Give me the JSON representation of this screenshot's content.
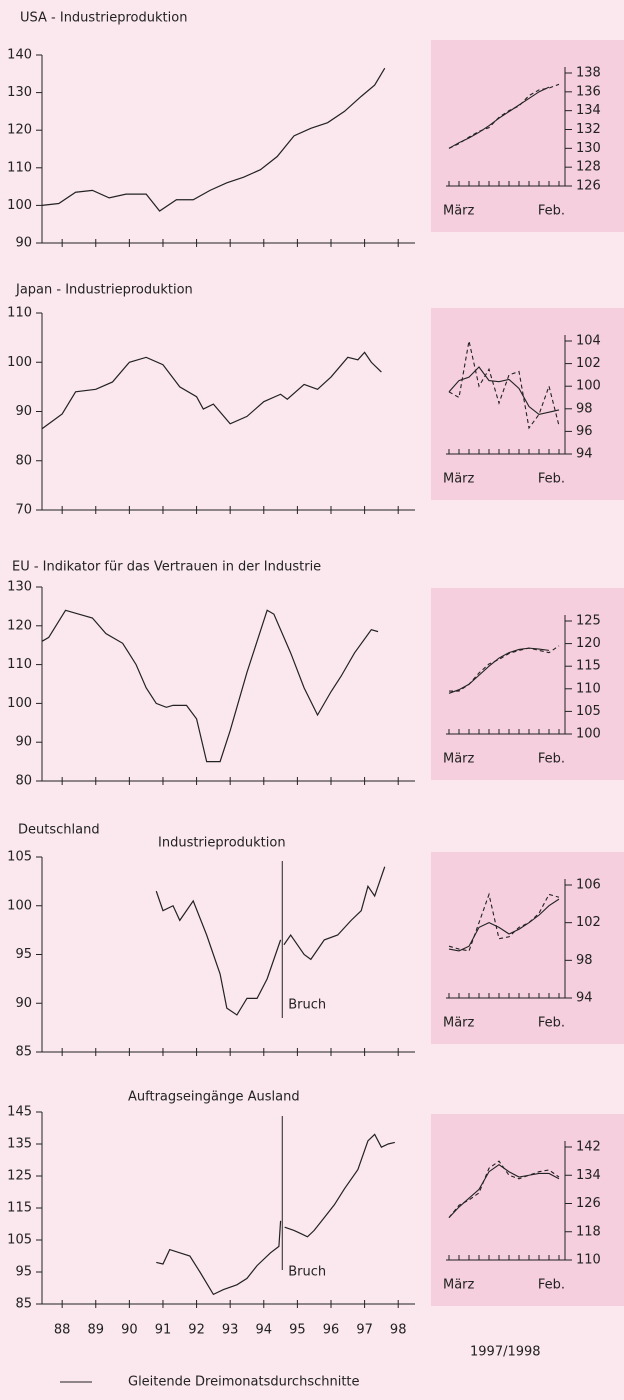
{
  "section_title": "Deutschland",
  "period_label": "1997/1998",
  "legend": [
    {
      "label": "Gleitende Dreimonatsdurchschnitte",
      "dash": false
    }
  ],
  "chart_data": [
    {
      "type": "line",
      "title": "USA - Industrieproduktion",
      "xlim": [
        87.4,
        98.5
      ],
      "xticks": [
        88,
        89,
        90,
        91,
        92,
        93,
        94,
        95,
        96,
        97,
        98
      ],
      "xtick_labels": false,
      "ylim": [
        90,
        140
      ],
      "yticks": [
        90,
        100,
        110,
        120,
        130,
        140
      ],
      "color": "#222",
      "x": [
        87.4,
        87.9,
        88.4,
        88.9,
        89.4,
        89.9,
        90.5,
        90.9,
        91.4,
        91.9,
        92.4,
        92.9,
        93.4,
        93.9,
        94.4,
        94.9,
        95.4,
        95.9,
        96.4,
        96.9,
        97.3,
        97.6
      ],
      "values": [
        100,
        100.5,
        103.5,
        104,
        102,
        103,
        103,
        98.5,
        101.5,
        101.5,
        104,
        106,
        107.5,
        109.5,
        113,
        118.5,
        120.5,
        122,
        125,
        129,
        132,
        136.5
      ]
    },
    {
      "type": "inset",
      "categories": [
        "März",
        null,
        null,
        null,
        null,
        null,
        null,
        null,
        null,
        null,
        null,
        "Feb."
      ],
      "ylim": [
        126,
        138
      ],
      "yticks": [
        126,
        128,
        130,
        132,
        134,
        136,
        138
      ],
      "series": [
        {
          "color": "#222",
          "dash": false,
          "values": [
            130,
            130.6,
            131.1,
            131.7,
            132.4,
            133.2,
            133.9,
            134.6,
            135.3,
            136,
            136.5,
            null
          ]
        },
        {
          "color": "#222",
          "dash": true,
          "values": [
            130,
            130.5,
            131.2,
            131.8,
            132.2,
            133.3,
            134,
            134.5,
            135.6,
            136.2,
            136.4,
            136.8
          ]
        }
      ]
    },
    {
      "type": "line",
      "title": "Japan - Industrieproduktion",
      "xlim": [
        87.4,
        98.5
      ],
      "xticks": [
        88,
        89,
        90,
        91,
        92,
        93,
        94,
        95,
        96,
        97,
        98
      ],
      "xtick_labels": false,
      "ylim": [
        70,
        110
      ],
      "yticks": [
        70,
        80,
        90,
        100,
        110
      ],
      "color": "#222",
      "x": [
        87.4,
        87.7,
        88.0,
        88.4,
        89.0,
        89.5,
        90.0,
        90.5,
        91.0,
        91.5,
        92.0,
        92.2,
        92.5,
        93.0,
        93.5,
        94.0,
        94.5,
        94.7,
        95.2,
        95.6,
        96.0,
        96.5,
        96.8,
        97.0,
        97.2,
        97.5
      ],
      "values": [
        86.5,
        88,
        89.5,
        94,
        94.5,
        96,
        100,
        101,
        99.5,
        95,
        93,
        90.5,
        91.5,
        87.5,
        89,
        92,
        93.5,
        92.5,
        95.5,
        94.5,
        97,
        101,
        100.5,
        102,
        100,
        98
      ]
    },
    {
      "type": "inset",
      "categories": [
        "März",
        null,
        null,
        null,
        null,
        null,
        null,
        null,
        null,
        null,
        null,
        "Feb."
      ],
      "ylim": [
        94,
        104
      ],
      "yticks": [
        94,
        96,
        98,
        100,
        102,
        104
      ],
      "series": [
        {
          "color": "#222",
          "dash": false,
          "values": [
            99.5,
            100.5,
            100.8,
            101.7,
            100.5,
            100.4,
            100.6,
            99.8,
            98.2,
            97.5,
            97.7,
            97.9
          ]
        },
        {
          "color": "#222",
          "dash": true,
          "values": [
            99.5,
            99,
            104,
            100,
            101.5,
            98.5,
            101,
            101.3,
            96.3,
            97.5,
            100,
            96.5
          ]
        }
      ]
    },
    {
      "type": "line",
      "title": "EU - Indikator für das Vertrauen in der Industrie",
      "xlim": [
        87.4,
        98.5
      ],
      "xticks": [
        88,
        89,
        90,
        91,
        92,
        93,
        94,
        95,
        96,
        97,
        98
      ],
      "xtick_labels": false,
      "ylim": [
        80,
        130
      ],
      "yticks": [
        80,
        90,
        100,
        110,
        120,
        130
      ],
      "color": "#222",
      "x": [
        87.4,
        87.6,
        88.1,
        88.5,
        88.9,
        89.3,
        89.8,
        90.2,
        90.5,
        90.8,
        91.1,
        91.3,
        91.7,
        92.0,
        92.3,
        92.7,
        93.0,
        93.5,
        94.1,
        94.3,
        94.8,
        95.2,
        95.6,
        96.0,
        96.3,
        96.7,
        97.2,
        97.4
      ],
      "values": [
        116,
        117,
        124,
        123,
        122,
        118,
        115.5,
        110,
        104,
        100,
        99,
        99.5,
        99.5,
        96,
        85,
        85,
        93,
        108,
        124,
        123,
        113,
        104,
        97,
        103,
        107,
        113,
        119,
        118.5
      ]
    },
    {
      "type": "inset",
      "categories": [
        "März",
        null,
        null,
        null,
        null,
        null,
        null,
        null,
        null,
        null,
        null,
        "Feb."
      ],
      "ylim": [
        100,
        125
      ],
      "yticks": [
        100,
        105,
        110,
        115,
        120,
        125
      ],
      "series": [
        {
          "color": "#222",
          "dash": false,
          "values": [
            109,
            109.8,
            111,
            113,
            115,
            116.8,
            118,
            118.7,
            119,
            118.8,
            118.5,
            null
          ]
        },
        {
          "color": "#222",
          "dash": true,
          "values": [
            109.5,
            109.5,
            111,
            113.5,
            115.5,
            116.5,
            117.8,
            118.5,
            119,
            118.5,
            118,
            119.5
          ]
        }
      ]
    },
    {
      "type": "line",
      "title": "Industrieproduktion",
      "xlim": [
        87.4,
        98.5
      ],
      "xticks": [
        88,
        89,
        90,
        91,
        92,
        93,
        94,
        95,
        96,
        97,
        98
      ],
      "xtick_labels": false,
      "ylim": [
        85,
        105
      ],
      "yticks": [
        85,
        90,
        95,
        100,
        105
      ],
      "color": "#222",
      "break_x": 94.55,
      "annotation": "Bruch",
      "x": [
        90.8,
        91.0,
        91.3,
        91.5,
        91.9,
        92.3,
        92.7,
        92.9,
        93.2,
        93.5,
        93.8,
        94.1,
        94.5,
        94.55,
        94.6,
        94.8,
        95.2,
        95.4,
        95.8,
        96.2,
        96.6,
        96.9,
        97.1,
        97.3,
        97.6
      ],
      "values": [
        101.5,
        99.5,
        100,
        98.5,
        100.5,
        97,
        93,
        89.5,
        88.8,
        90.5,
        90.5,
        92.5,
        96.5,
        null,
        96,
        97,
        95,
        94.5,
        96.5,
        97,
        98.5,
        99.5,
        102,
        101,
        104
      ]
    },
    {
      "type": "inset",
      "categories": [
        "März",
        null,
        null,
        null,
        null,
        null,
        null,
        null,
        null,
        null,
        null,
        "Feb."
      ],
      "ylim": [
        94,
        106
      ],
      "yticks": [
        94,
        98,
        102,
        106
      ],
      "series": [
        {
          "color": "#222",
          "dash": false,
          "values": [
            99.2,
            99,
            99.5,
            101.5,
            102,
            101.5,
            100.8,
            101.3,
            102,
            102.8,
            103.8,
            104.5
          ]
        },
        {
          "color": "#222",
          "dash": true,
          "values": [
            99.5,
            99.2,
            99,
            102,
            105,
            100.3,
            100.5,
            101.5,
            102,
            103,
            105,
            104.7
          ]
        }
      ]
    },
    {
      "type": "line",
      "title": "Auftragseingänge Ausland",
      "xlim": [
        87.4,
        98.5
      ],
      "xticks": [
        88,
        89,
        90,
        91,
        92,
        93,
        94,
        95,
        96,
        97,
        98
      ],
      "xtick_labels": true,
      "ylim": [
        85,
        145
      ],
      "yticks": [
        85,
        95,
        105,
        115,
        125,
        135,
        145
      ],
      "color": "#222",
      "break_x": 94.55,
      "annotation": "Bruch",
      "x": [
        90.8,
        91.0,
        91.2,
        91.5,
        91.8,
        92.1,
        92.5,
        92.8,
        93.2,
        93.5,
        93.8,
        94.2,
        94.45,
        94.5,
        94.55,
        94.62,
        94.9,
        95.1,
        95.3,
        95.5,
        95.8,
        96.1,
        96.4,
        96.8,
        97.1,
        97.3,
        97.5,
        97.7,
        97.9
      ],
      "values": [
        98,
        97.5,
        102,
        101,
        100,
        95,
        88,
        89.5,
        91,
        93,
        97,
        101,
        103,
        111,
        null,
        109,
        108,
        107,
        106,
        108,
        112,
        116,
        121,
        127,
        136,
        138,
        134,
        135,
        135.5
      ]
    },
    {
      "type": "inset",
      "categories": [
        "März",
        null,
        null,
        null,
        null,
        null,
        null,
        null,
        null,
        null,
        null,
        "Feb."
      ],
      "ylim": [
        110,
        142
      ],
      "yticks": [
        110,
        118,
        126,
        134,
        142
      ],
      "series": [
        {
          "color": "#222",
          "dash": false,
          "values": [
            122,
            125,
            127.5,
            130,
            135,
            137,
            135,
            133.5,
            134,
            134.5,
            134.5,
            133
          ]
        },
        {
          "color": "#222",
          "dash": true,
          "values": [
            122,
            125.5,
            127,
            129,
            136,
            138,
            134,
            133,
            134,
            135,
            135.5,
            133.5
          ]
        }
      ]
    }
  ]
}
